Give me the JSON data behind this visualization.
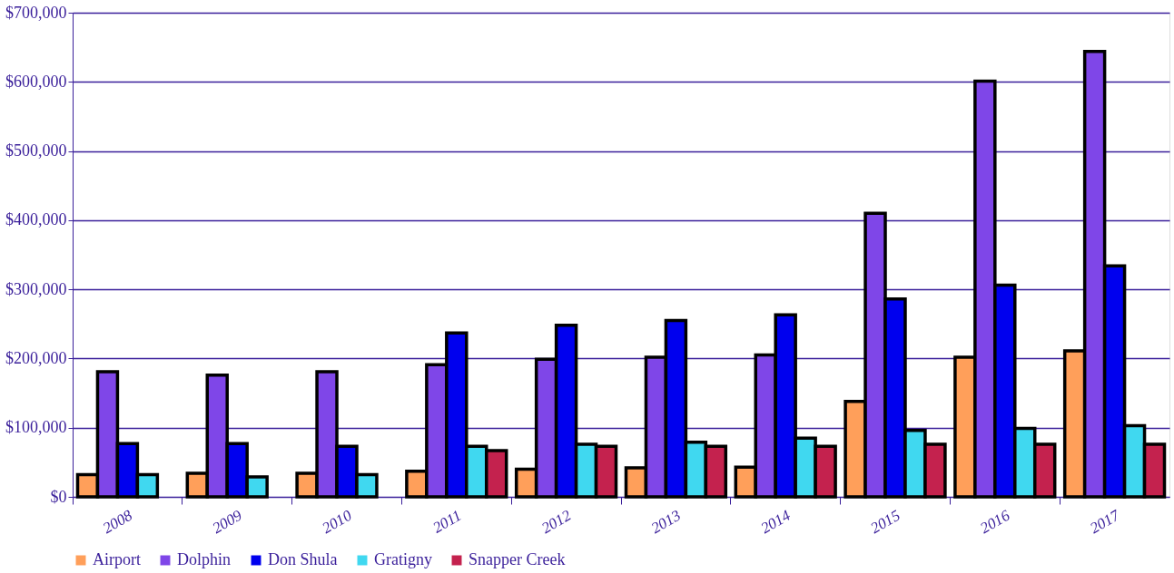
{
  "chart_data": {
    "type": "bar",
    "categories": [
      "2008",
      "2009",
      "2010",
      "2011",
      "2012",
      "2013",
      "2014",
      "2015",
      "2016",
      "2017"
    ],
    "series": [
      {
        "name": "Airport",
        "color": "#ff9f5a",
        "values": [
          32000,
          34000,
          34000,
          37000,
          40000,
          42000,
          43000,
          138000,
          202000,
          211000
        ]
      },
      {
        "name": "Dolphin",
        "color": "#7f46e8",
        "values": [
          181000,
          176000,
          181000,
          191000,
          199000,
          202000,
          205000,
          410000,
          601000,
          644000
        ]
      },
      {
        "name": "Don Shula",
        "color": "#0000ee",
        "values": [
          77000,
          77000,
          73000,
          237000,
          248000,
          255000,
          263000,
          286000,
          306000,
          334000
        ]
      },
      {
        "name": "Gratigny",
        "color": "#40d8f0",
        "values": [
          32000,
          29000,
          32000,
          73000,
          76000,
          79000,
          85000,
          96000,
          99000,
          103000
        ]
      },
      {
        "name": "Snapper Creek",
        "color": "#c4224e",
        "values": [
          null,
          null,
          null,
          67000,
          73000,
          73000,
          73000,
          76000,
          76000,
          76000
        ]
      }
    ],
    "ylim": [
      0,
      700000
    ],
    "yticks": [
      {
        "value": 0,
        "label": "$0"
      },
      {
        "value": 100000,
        "label": "$100,000"
      },
      {
        "value": 200000,
        "label": "$200,000"
      },
      {
        "value": 300000,
        "label": "$300,000"
      },
      {
        "value": 400000,
        "label": "$400,000"
      },
      {
        "value": 500000,
        "label": "$500,000"
      },
      {
        "value": 600000,
        "label": "$600,000"
      },
      {
        "value": 700000,
        "label": "$700,000"
      }
    ],
    "grid": "y",
    "legend": "bottom"
  }
}
